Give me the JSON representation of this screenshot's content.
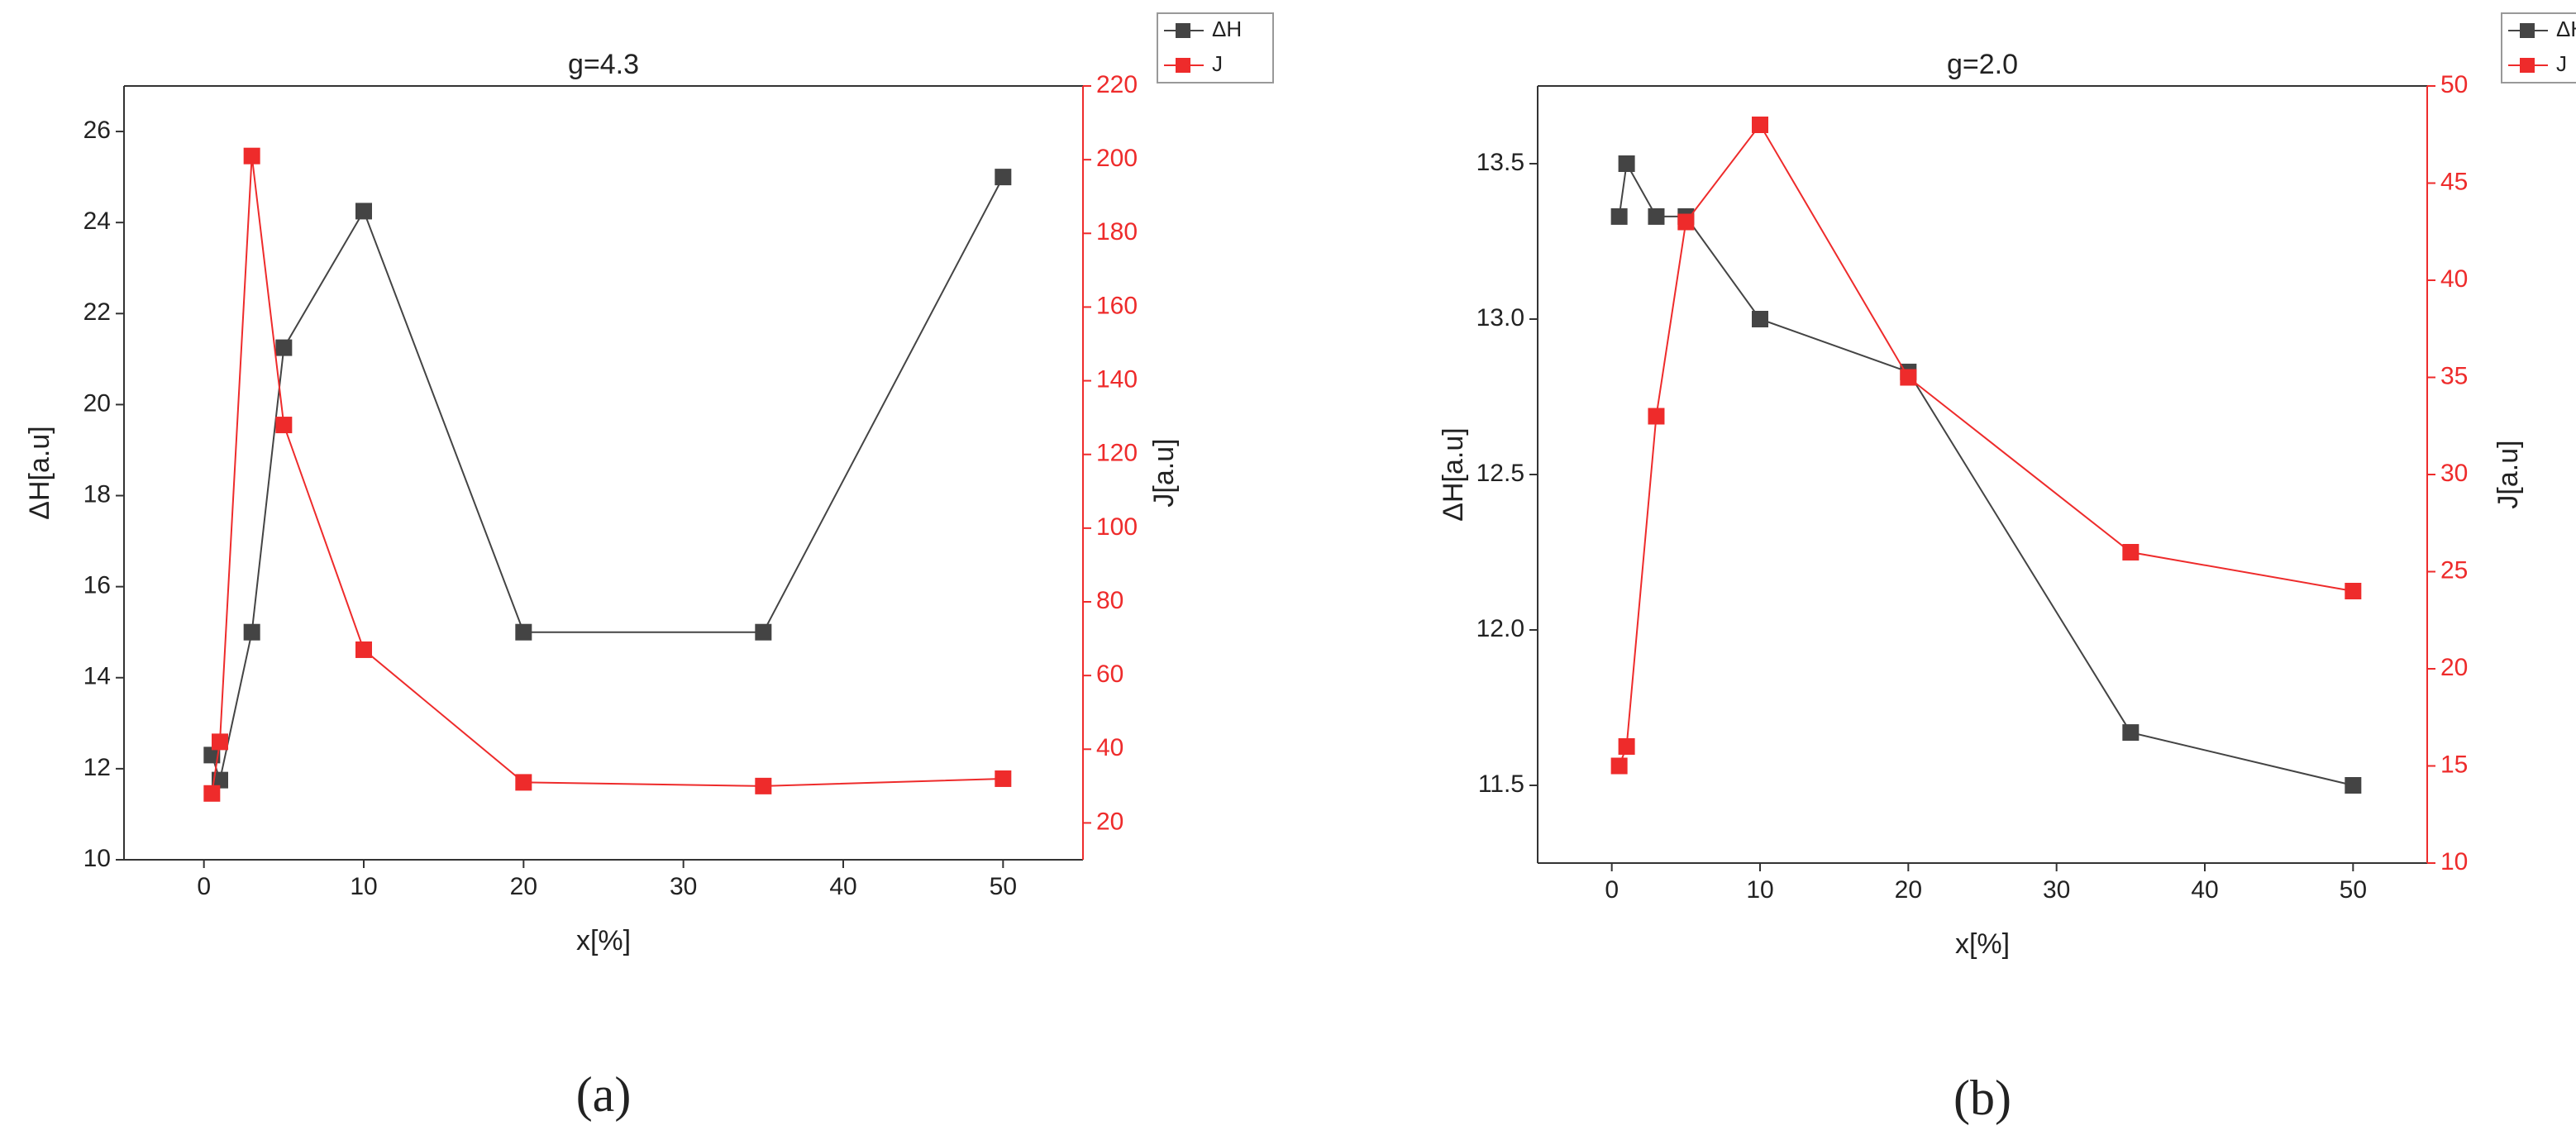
{
  "chart_data": [
    {
      "type": "line",
      "title": "g=4.3",
      "xlabel": "x[%]",
      "ylabel": "ΔH[a.u]",
      "y2label": "J[a.u]",
      "caption": "(a)",
      "x": [
        0.5,
        1,
        3,
        5,
        10,
        20,
        35,
        50
      ],
      "series": [
        {
          "name": "ΔH",
          "color": "#444444",
          "values": [
            12.3,
            11.75,
            15,
            21.25,
            24.25,
            15,
            15,
            25
          ]
        },
        {
          "name": "J",
          "color": "#ee2b2b",
          "axis": "y2",
          "values": [
            28,
            42,
            201,
            128,
            67,
            31,
            30,
            32
          ]
        }
      ],
      "xlim": [
        -5,
        55
      ],
      "xticks": [
        0,
        10,
        20,
        30,
        40,
        50
      ],
      "ylim": [
        10,
        27
      ],
      "yticks": [
        10,
        12,
        14,
        16,
        18,
        20,
        22,
        24,
        26
      ],
      "y2lim": [
        10,
        220
      ],
      "y2ticks": [
        20,
        40,
        60,
        80,
        100,
        120,
        140,
        160,
        180,
        200,
        220
      ],
      "legend": "top right"
    },
    {
      "type": "line",
      "title": "g=2.0",
      "xlabel": "x[%]",
      "ylabel": "ΔH[a.u]",
      "y2label": "J[a.u]",
      "caption": "(b)",
      "x": [
        0.5,
        1,
        3,
        5,
        10,
        20,
        35,
        50
      ],
      "series": [
        {
          "name": "ΔH",
          "color": "#444444",
          "values": [
            13.33,
            13.5,
            13.33,
            13.33,
            13.0,
            12.83,
            11.67,
            11.5
          ]
        },
        {
          "name": "J",
          "color": "#ee2b2b",
          "axis": "y2",
          "values": [
            15,
            16,
            33,
            43,
            48,
            35,
            26,
            24
          ]
        }
      ],
      "xlim": [
        -5,
        55
      ],
      "xticks": [
        0,
        10,
        20,
        30,
        40,
        50
      ],
      "ylim": [
        11.25,
        13.75
      ],
      "yticks": [
        11.5,
        {
          "value": 12,
          "label": "12.0"
        },
        12.5,
        {
          "value": 13,
          "label": "13.0"
        },
        13.5
      ],
      "y2lim": [
        10,
        50
      ],
      "y2ticks": [
        10,
        15,
        20,
        25,
        30,
        35,
        40,
        45,
        50
      ],
      "legend": "top right"
    }
  ]
}
